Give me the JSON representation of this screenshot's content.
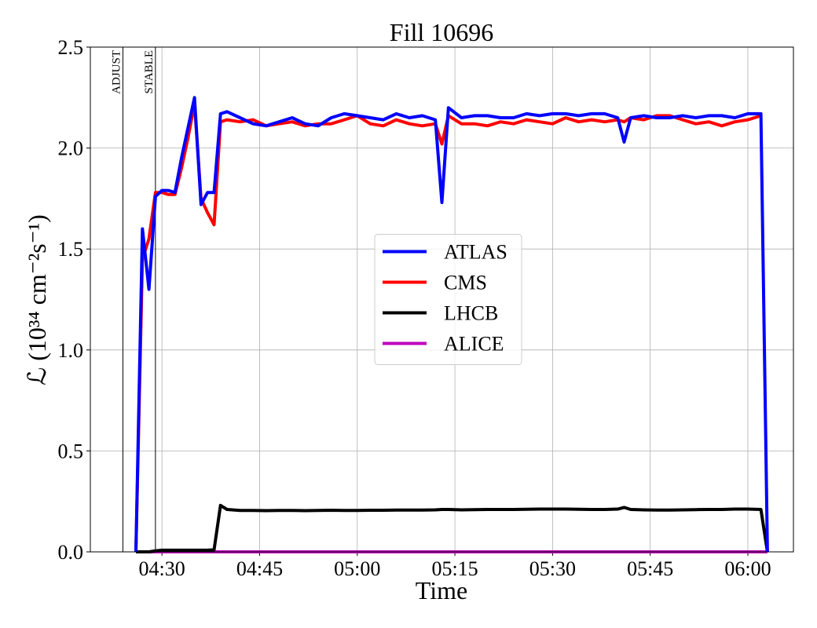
{
  "chart_data": {
    "type": "line",
    "title": "Fill 10696",
    "x_label": "Time",
    "y_label": "ℒ (10³⁴ cm⁻²s⁻¹)",
    "x": [
      "04:26",
      "04:27",
      "04:28",
      "04:29",
      "04:30",
      "04:31",
      "04:32",
      "04:33",
      "04:34",
      "04:35",
      "04:36",
      "04:37",
      "04:38",
      "04:39",
      "04:40",
      "04:42",
      "04:44",
      "04:46",
      "04:48",
      "04:50",
      "04:52",
      "04:54",
      "04:56",
      "04:58",
      "05:00",
      "05:02",
      "05:04",
      "05:06",
      "05:08",
      "05:10",
      "05:12",
      "05:13",
      "05:14",
      "05:16",
      "05:18",
      "05:20",
      "05:22",
      "05:24",
      "05:26",
      "05:28",
      "05:30",
      "05:32",
      "05:34",
      "05:36",
      "05:38",
      "05:40",
      "05:41",
      "05:42",
      "05:44",
      "05:46",
      "05:48",
      "05:50",
      "05:52",
      "05:54",
      "05:56",
      "05:58",
      "06:00",
      "06:02",
      "06:03"
    ],
    "series": [
      {
        "name": "ATLAS",
        "color": "#0000ff",
        "values": [
          0,
          1.6,
          1.3,
          1.76,
          1.79,
          1.79,
          1.78,
          1.95,
          2.1,
          2.25,
          1.72,
          1.78,
          1.78,
          2.17,
          2.18,
          2.15,
          2.12,
          2.11,
          2.13,
          2.15,
          2.12,
          2.11,
          2.15,
          2.17,
          2.16,
          2.15,
          2.14,
          2.17,
          2.15,
          2.16,
          2.14,
          1.73,
          2.2,
          2.15,
          2.16,
          2.16,
          2.15,
          2.15,
          2.17,
          2.16,
          2.17,
          2.17,
          2.16,
          2.17,
          2.17,
          2.15,
          2.03,
          2.15,
          2.16,
          2.15,
          2.15,
          2.16,
          2.15,
          2.16,
          2.16,
          2.15,
          2.17,
          2.17,
          0
        ]
      },
      {
        "name": "CMS",
        "color": "#ff0000",
        "values": [
          0,
          1.45,
          1.55,
          1.78,
          1.78,
          1.77,
          1.77,
          1.9,
          2.05,
          2.22,
          1.75,
          1.68,
          1.62,
          2.13,
          2.14,
          2.13,
          2.14,
          2.11,
          2.12,
          2.13,
          2.11,
          2.12,
          2.12,
          2.14,
          2.16,
          2.12,
          2.11,
          2.14,
          2.12,
          2.11,
          2.12,
          2.02,
          2.16,
          2.12,
          2.12,
          2.11,
          2.13,
          2.12,
          2.14,
          2.13,
          2.12,
          2.15,
          2.13,
          2.14,
          2.13,
          2.14,
          2.13,
          2.15,
          2.14,
          2.16,
          2.16,
          2.14,
          2.12,
          2.13,
          2.11,
          2.13,
          2.14,
          2.16,
          null
        ]
      },
      {
        "name": "LHCB",
        "color": "#000000",
        "values": [
          0,
          0,
          0,
          0.005,
          0.008,
          0.008,
          0.008,
          0.008,
          0.008,
          0.008,
          0.008,
          0.008,
          0.01,
          0.23,
          0.21,
          0.205,
          0.205,
          0.204,
          0.205,
          0.205,
          0.204,
          0.205,
          0.206,
          0.205,
          0.205,
          0.206,
          0.206,
          0.207,
          0.207,
          0.207,
          0.208,
          0.21,
          0.21,
          0.208,
          0.209,
          0.21,
          0.21,
          0.21,
          0.211,
          0.212,
          0.212,
          0.212,
          0.211,
          0.21,
          0.21,
          0.212,
          0.22,
          0.21,
          0.208,
          0.207,
          0.207,
          0.208,
          0.209,
          0.21,
          0.21,
          0.212,
          0.212,
          0.21,
          0
        ]
      },
      {
        "name": "ALICE",
        "color": "#bf00bf",
        "values": [
          0,
          0,
          0,
          0,
          0,
          0,
          0,
          0,
          0,
          0,
          0,
          0,
          0,
          0,
          0,
          0,
          0,
          0,
          0,
          0,
          0,
          0,
          0,
          0,
          0,
          0,
          0,
          0,
          0,
          0,
          0,
          0,
          0,
          0,
          0,
          0,
          0,
          0,
          0,
          0,
          0,
          0,
          0,
          0,
          0,
          0,
          0,
          0,
          0,
          0,
          0,
          0,
          0,
          0,
          0,
          0,
          0,
          0,
          0
        ]
      }
    ],
    "xlim": [
      "04:19",
      "06:07"
    ],
    "xticks": [
      "04:30",
      "04:45",
      "05:00",
      "05:15",
      "05:30",
      "05:45",
      "06:00"
    ],
    "ylim": [
      0,
      2.5
    ],
    "yticks": [
      {
        "value": 0,
        "label": "0.0"
      },
      0.5,
      {
        "value": 1,
        "label": "1.0"
      },
      1.5,
      {
        "value": 2,
        "label": "2.0"
      },
      2.5
    ],
    "grid": true,
    "legend": "center",
    "annotations": [
      {
        "text": "ADJUST",
        "x": "04:24"
      },
      {
        "text": "STABLE",
        "x": "04:29"
      }
    ]
  }
}
